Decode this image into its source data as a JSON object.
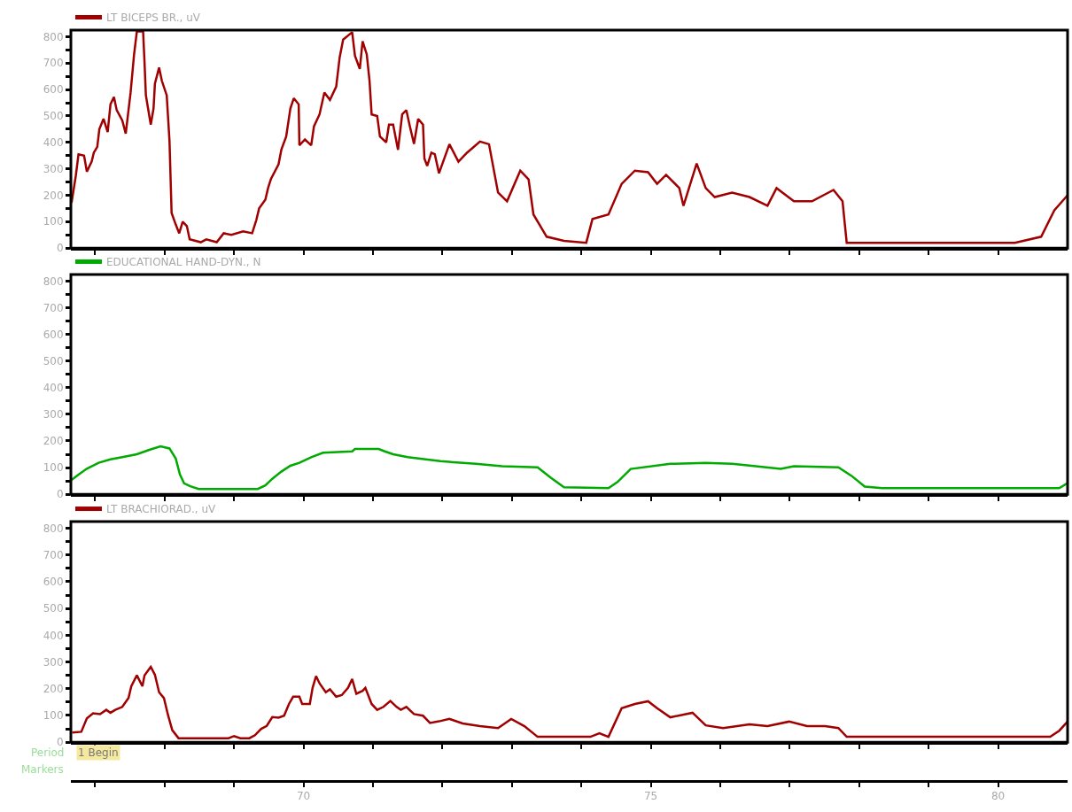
{
  "chart_data": [
    {
      "type": "line",
      "tick_labels": "y",
      "legend": "top left",
      "marker": "none",
      "x": [
        66.66,
        66.72,
        66.76,
        66.84,
        66.88,
        66.95,
        66.98,
        67.03,
        67.06,
        67.12,
        67.18,
        67.22,
        67.27,
        67.31,
        67.39,
        67.44,
        67.51,
        67.56,
        67.6,
        67.69,
        67.71,
        67.73,
        67.8,
        67.84,
        67.86,
        67.92,
        67.96,
        68.03,
        68.07,
        68.1,
        68.16,
        68.21,
        68.26,
        68.32,
        68.36,
        68.52,
        68.6,
        68.75,
        68.85,
        68.96,
        69.13,
        69.26,
        69.32,
        69.36,
        69.45,
        69.49,
        69.53,
        69.64,
        69.68,
        69.75,
        69.81,
        69.86,
        69.93,
        69.94,
        70.02,
        70.11,
        70.15,
        70.23,
        70.3,
        70.38,
        70.47,
        70.52,
        70.57,
        70.7,
        70.74,
        70.81,
        70.85,
        70.91,
        70.95,
        70.98,
        71.06,
        71.1,
        71.19,
        71.23,
        71.29,
        71.36,
        71.42,
        71.48,
        71.53,
        71.59,
        71.65,
        71.72,
        71.74,
        71.78,
        71.84,
        71.89,
        71.95,
        72.1,
        72.23,
        72.35,
        72.54,
        72.67,
        72.8,
        72.93,
        73.12,
        73.24,
        73.31,
        73.5,
        73.75,
        74.07,
        74.16,
        74.39,
        74.58,
        74.77,
        74.96,
        75.09,
        75.22,
        75.41,
        75.47,
        75.66,
        75.79,
        75.92,
        76.17,
        76.42,
        76.68,
        76.81,
        77.06,
        77.32,
        77.63,
        77.76,
        77.82,
        78.33,
        79.22,
        80.24,
        80.62,
        80.81,
        81.0
      ],
      "series": [
        {
          "name": "LT BICEPS BR., uV",
          "color": "#a00000",
          "values": [
            172,
            272,
            355,
            350,
            289,
            328,
            361,
            383,
            450,
            489,
            439,
            544,
            572,
            522,
            483,
            433,
            589,
            733,
            820,
            820,
            705,
            578,
            467,
            528,
            622,
            683,
            633,
            578,
            405,
            133,
            89,
            56,
            100,
            83,
            33,
            22,
            33,
            22,
            56,
            50,
            63,
            56,
            106,
            150,
            183,
            228,
            261,
            317,
            372,
            422,
            528,
            567,
            544,
            389,
            411,
            389,
            461,
            506,
            589,
            561,
            611,
            722,
            789,
            817,
            728,
            678,
            783,
            733,
            633,
            506,
            500,
            422,
            400,
            467,
            467,
            372,
            506,
            522,
            461,
            394,
            489,
            467,
            339,
            311,
            361,
            355,
            283,
            393,
            327,
            360,
            403,
            393,
            210,
            177,
            293,
            260,
            127,
            43,
            27,
            20,
            110,
            127,
            243,
            293,
            287,
            243,
            277,
            227,
            160,
            320,
            227,
            193,
            210,
            193,
            160,
            227,
            177,
            177,
            220,
            177,
            20,
            20,
            20,
            20,
            43,
            143,
            200
          ]
        }
      ],
      "xlim": [
        66.65,
        81.0
      ],
      "xticks": [
        {
          "value": 67,
          "label": null
        },
        {
          "value": 68,
          "label": null
        },
        {
          "value": 69,
          "label": null
        },
        70,
        {
          "value": 71,
          "label": null
        },
        {
          "value": 72,
          "label": null
        },
        {
          "value": 73,
          "label": null
        },
        {
          "value": 74,
          "label": null
        },
        75,
        {
          "value": 76,
          "label": null
        },
        {
          "value": 77,
          "label": null
        },
        {
          "value": 78,
          "label": null
        },
        {
          "value": 79,
          "label": null
        },
        80
      ],
      "ylim": [
        0,
        825
      ],
      "yticks": [
        0,
        {
          "value": 50,
          "label": null
        },
        100,
        {
          "value": 150,
          "label": null
        },
        200,
        {
          "value": 250,
          "label": null
        },
        300,
        {
          "value": 350,
          "label": null
        },
        400,
        {
          "value": 450,
          "label": null
        },
        500,
        {
          "value": 550,
          "label": null
        },
        600,
        {
          "value": 650,
          "label": null
        },
        700,
        {
          "value": 750,
          "label": null
        },
        800
      ]
    },
    {
      "type": "line",
      "tick_labels": "y",
      "legend": "top left",
      "marker": "none",
      "x": [
        66.65,
        66.76,
        66.88,
        67.05,
        67.22,
        67.39,
        67.6,
        67.77,
        67.94,
        68.07,
        68.16,
        68.22,
        68.28,
        68.37,
        68.49,
        69.34,
        69.45,
        69.55,
        69.68,
        69.81,
        69.94,
        70.11,
        70.28,
        70.7,
        70.74,
        71.08,
        71.17,
        71.29,
        71.5,
        71.76,
        71.97,
        72.48,
        72.86,
        73.37,
        73.56,
        73.75,
        74.39,
        74.52,
        74.71,
        75.28,
        75.79,
        76.17,
        76.42,
        76.87,
        77.06,
        77.7,
        77.89,
        78.08,
        78.33,
        80.88,
        81.0
      ],
      "series": [
        {
          "name": "EDUCATIONAL HAND-DYN., N",
          "color": "#00aa00",
          "values": [
            52,
            74,
            96,
            118,
            131,
            139,
            150,
            166,
            180,
            172,
            134,
            74,
            41,
            30,
            20,
            20,
            33,
            58,
            85,
            107,
            118,
            139,
            156,
            161,
            170,
            170,
            161,
            150,
            139,
            131,
            124,
            114,
            105,
            101,
            62,
            26,
            23,
            46,
            95,
            114,
            118,
            114,
            108,
            95,
            105,
            101,
            69,
            29,
            23,
            23,
            42
          ]
        }
      ],
      "xlim": [
        66.65,
        81.0
      ],
      "xticks": [
        {
          "value": 67,
          "label": null
        },
        {
          "value": 68,
          "label": null
        },
        {
          "value": 69,
          "label": null
        },
        70,
        {
          "value": 71,
          "label": null
        },
        {
          "value": 72,
          "label": null
        },
        {
          "value": 73,
          "label": null
        },
        {
          "value": 74,
          "label": null
        },
        75,
        {
          "value": 76,
          "label": null
        },
        {
          "value": 77,
          "label": null
        },
        {
          "value": 78,
          "label": null
        },
        {
          "value": 79,
          "label": null
        },
        80
      ],
      "ylim": [
        0,
        825
      ],
      "yticks": [
        0,
        {
          "value": 50,
          "label": null
        },
        100,
        {
          "value": 150,
          "label": null
        },
        200,
        {
          "value": 250,
          "label": null
        },
        300,
        {
          "value": 350,
          "label": null
        },
        400,
        {
          "value": 450,
          "label": null
        },
        500,
        {
          "value": 550,
          "label": null
        },
        600,
        {
          "value": 650,
          "label": null
        },
        700,
        {
          "value": 750,
          "label": null
        },
        800
      ]
    },
    {
      "type": "line",
      "legend": "top left",
      "marker": "none",
      "x": [
        66.67,
        66.8,
        66.88,
        66.97,
        67.07,
        67.16,
        67.22,
        67.29,
        67.39,
        67.48,
        67.52,
        67.6,
        67.68,
        67.71,
        67.8,
        67.86,
        67.92,
        67.99,
        68.05,
        68.11,
        68.2,
        68.92,
        69.0,
        69.09,
        69.22,
        69.3,
        69.39,
        69.47,
        69.55,
        69.64,
        69.72,
        69.79,
        69.85,
        69.94,
        69.98,
        70.09,
        70.13,
        70.18,
        70.23,
        70.32,
        70.38,
        70.47,
        70.55,
        70.64,
        70.7,
        70.76,
        70.85,
        70.89,
        70.98,
        71.06,
        71.15,
        71.25,
        71.34,
        71.4,
        71.48,
        71.59,
        71.72,
        71.82,
        71.95,
        72.1,
        72.29,
        72.54,
        72.8,
        72.99,
        73.18,
        73.37,
        74.13,
        74.26,
        74.39,
        74.58,
        74.77,
        74.96,
        75.09,
        75.28,
        75.6,
        75.79,
        76.04,
        76.42,
        76.68,
        76.99,
        77.25,
        77.51,
        77.7,
        77.82,
        80.75,
        80.88,
        81.0
      ],
      "series": [
        {
          "name": "LT BRACHIORAD., uV",
          "color": "#a00000",
          "values": [
            36,
            39,
            89,
            108,
            105,
            121,
            110,
            121,
            132,
            165,
            209,
            250,
            209,
            250,
            282,
            252,
            187,
            165,
            100,
            45,
            15,
            15,
            23,
            15,
            15,
            26,
            50,
            61,
            94,
            92,
            99,
            143,
            170,
            170,
            143,
            143,
            203,
            247,
            220,
            187,
            198,
            170,
            176,
            203,
            236,
            181,
            192,
            203,
            143,
            121,
            132,
            154,
            132,
            121,
            132,
            105,
            99,
            72,
            78,
            87,
            70,
            60,
            53,
            87,
            60,
            20,
            20,
            33,
            20,
            127,
            143,
            153,
            127,
            93,
            110,
            63,
            53,
            67,
            60,
            77,
            60,
            60,
            53,
            20,
            20,
            43,
            77
          ]
        }
      ],
      "xlim": [
        66.65,
        81.0
      ],
      "xticks": [
        {
          "value": 67,
          "label": null
        },
        {
          "value": 68,
          "label": null
        },
        {
          "value": 69,
          "label": null
        },
        70,
        {
          "value": 71,
          "label": null
        },
        {
          "value": 72,
          "label": null
        },
        {
          "value": 73,
          "label": null
        },
        {
          "value": 74,
          "label": null
        },
        75,
        {
          "value": 76,
          "label": null
        },
        {
          "value": 77,
          "label": null
        },
        {
          "value": 78,
          "label": null
        },
        {
          "value": 79,
          "label": null
        },
        80
      ],
      "ylim": [
        0,
        825
      ],
      "yticks": [
        0,
        {
          "value": 50,
          "label": null
        },
        100,
        {
          "value": 150,
          "label": null
        },
        200,
        {
          "value": 250,
          "label": null
        },
        300,
        {
          "value": 350,
          "label": null
        },
        400,
        {
          "value": 450,
          "label": null
        },
        500,
        {
          "value": 550,
          "label": null
        },
        600,
        {
          "value": 650,
          "label": null
        },
        700,
        {
          "value": 750,
          "label": null
        },
        800
      ],
      "annotations": [
        "Period",
        "1 Begin",
        "Markers"
      ]
    }
  ]
}
